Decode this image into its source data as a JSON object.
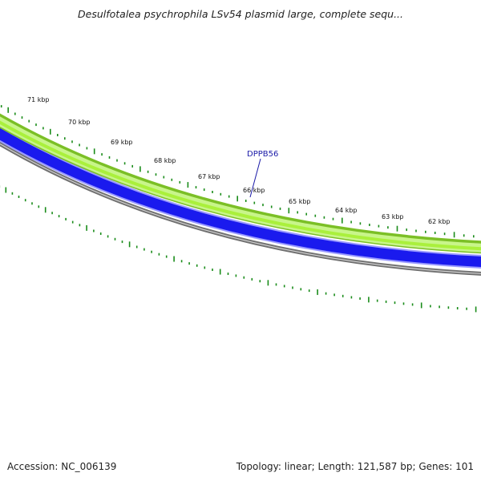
{
  "header": {
    "title": "Desulfotalea psychrophila LSv54 plasmid large, complete sequ..."
  },
  "footer": {
    "accession": "Accession: NC_006139",
    "summary": "Topology: linear; Length: 121,587 bp; Genes: 101"
  },
  "map": {
    "gene_label": "DPPB56",
    "kbp_labels": [
      "71 kbp",
      "70 kbp",
      "69 kbp",
      "68 kbp",
      "67 kbp",
      "66 kbp",
      "65 kbp",
      "64 kbp",
      "63 kbp",
      "62 kbp"
    ],
    "colors": {
      "tick": "#1a8c1a",
      "forward_outer": "#7bbf26",
      "forward_band": "#c8f58a",
      "forward_band_mid": "#aaf03c",
      "reverse_band": "#1a1aee",
      "reverse_edge": "#9a9aff",
      "backbone": "#707070",
      "gene_label": "#1a1aa8"
    }
  }
}
